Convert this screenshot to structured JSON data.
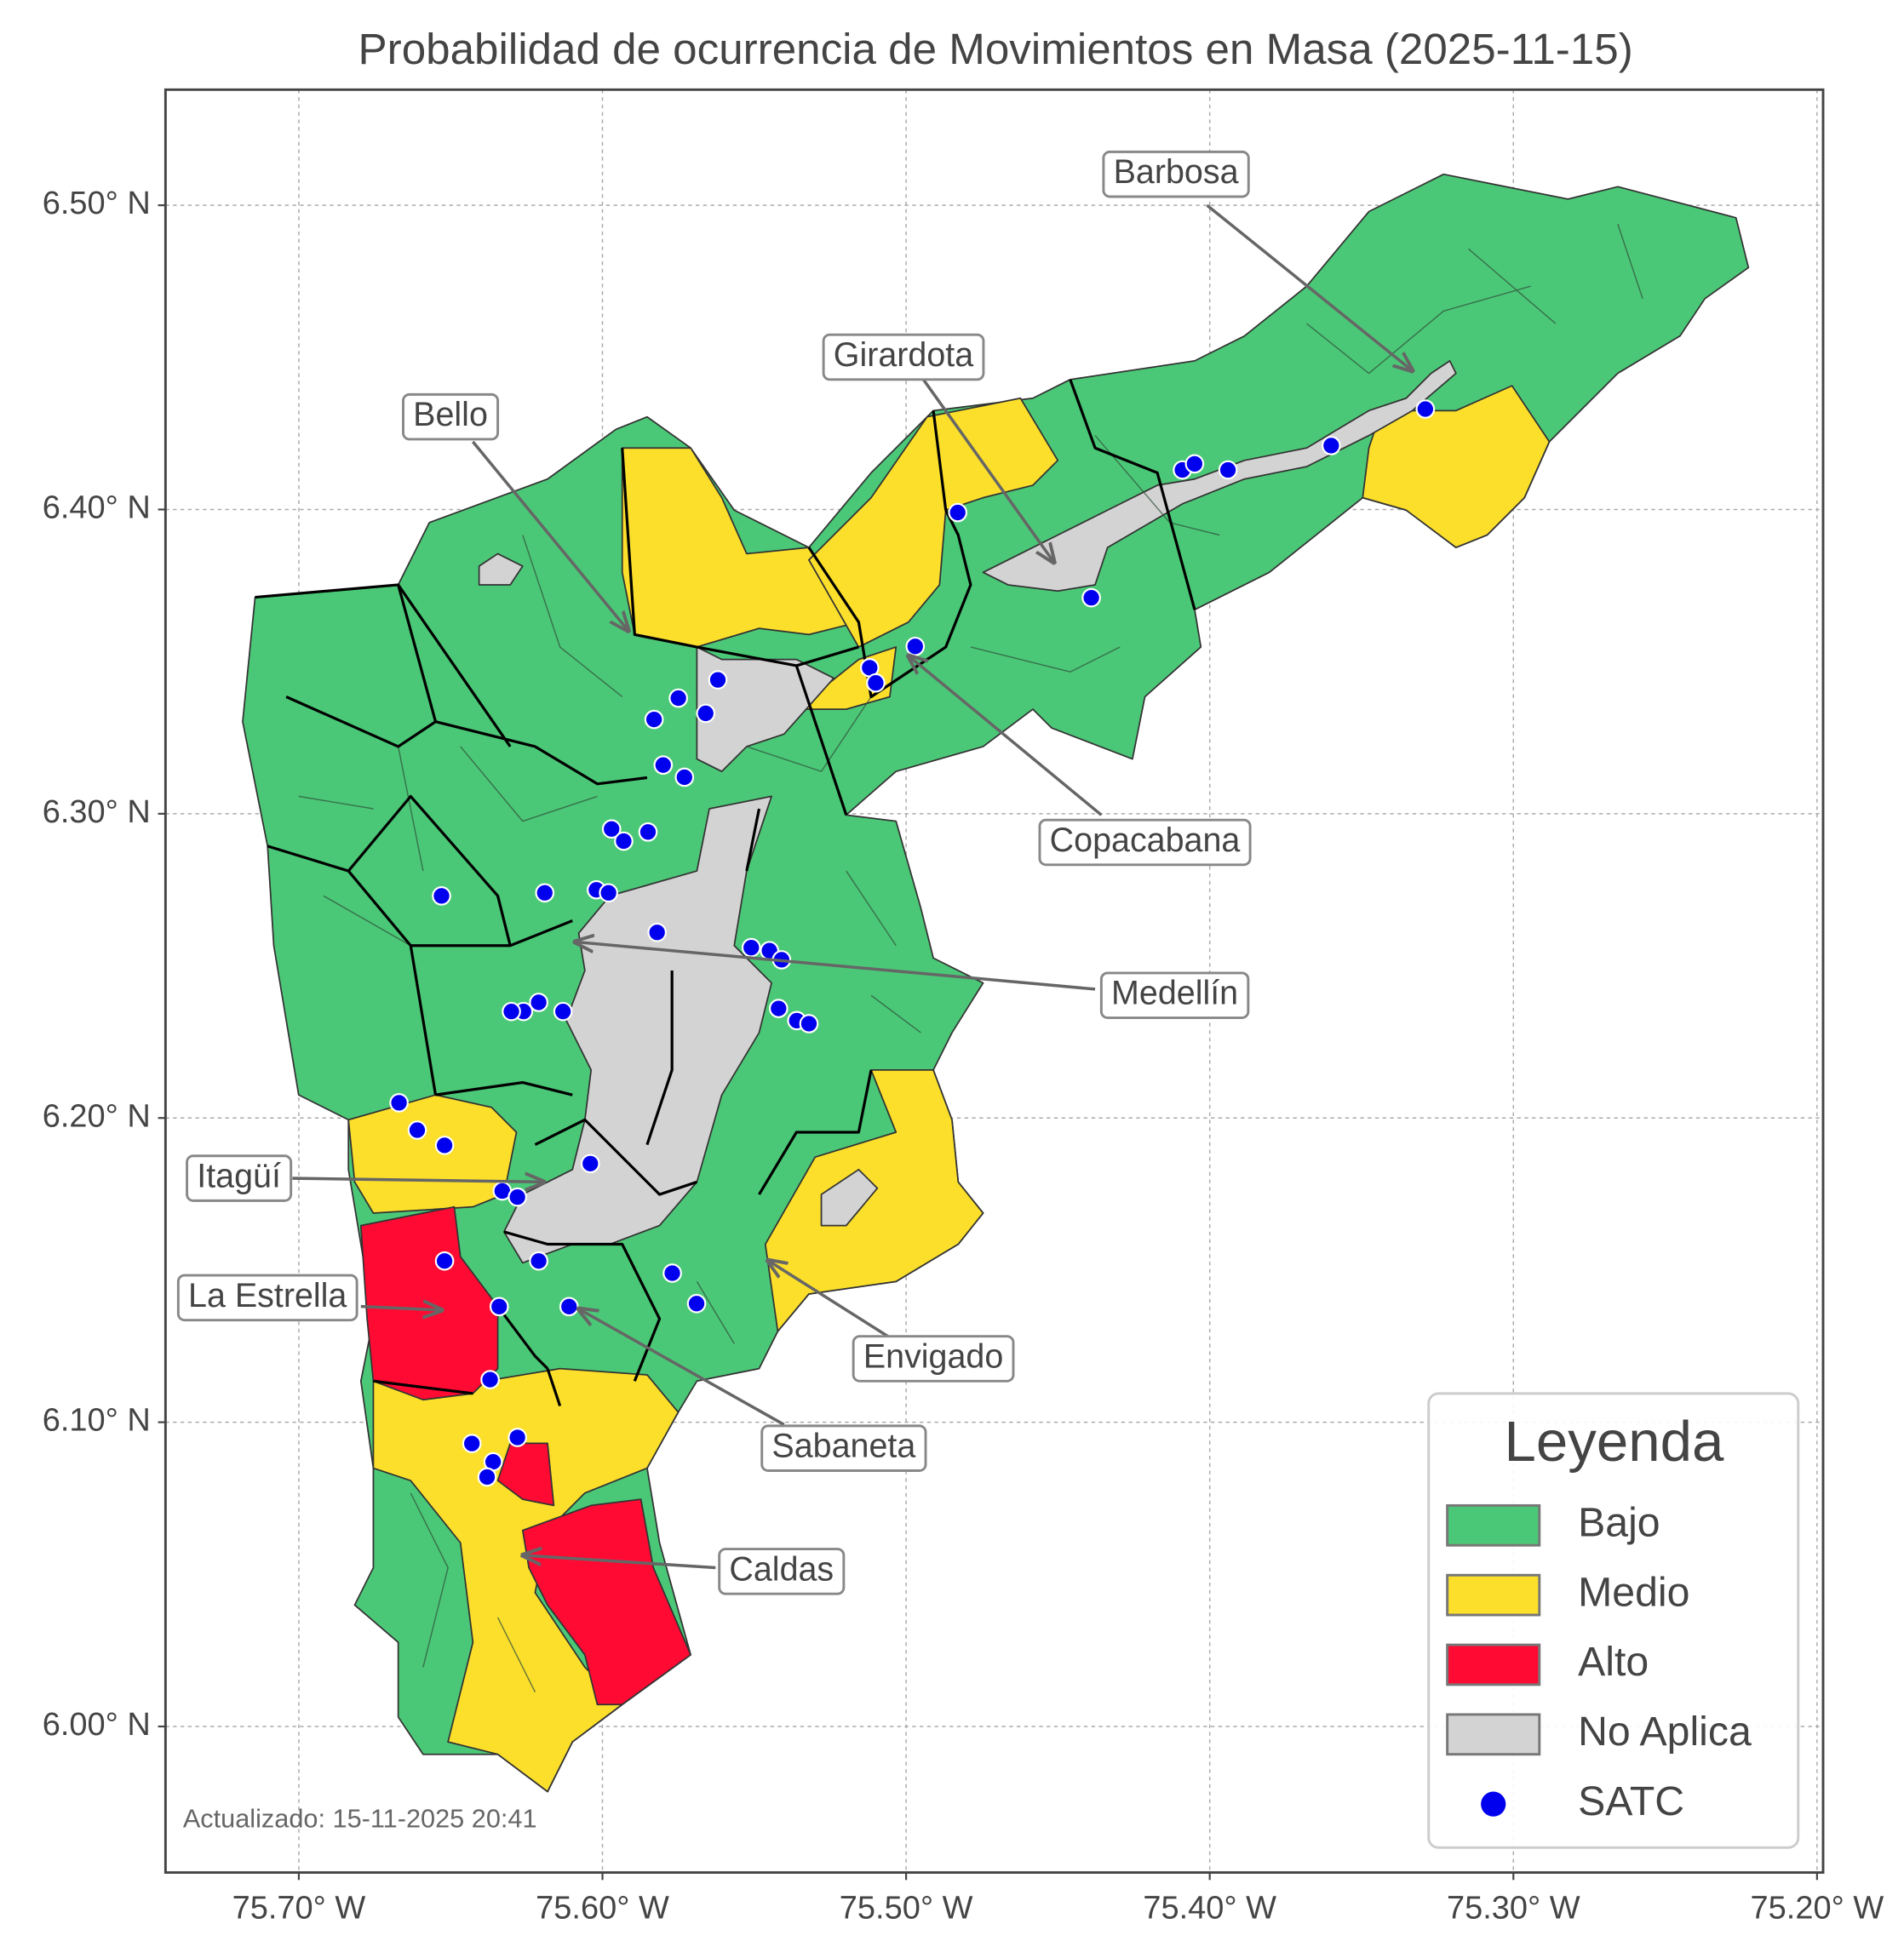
{
  "title": "Probabilidad de ocurrencia de Movimientos en Masa (2025-11-15)",
  "axes": {
    "xlim": [
      -75.7439,
      -75.198
    ],
    "ylim": [
      5.952,
      6.538
    ],
    "xticks": [
      {
        "value": -75.7,
        "label": "75.70° W"
      },
      {
        "value": -75.6,
        "label": "75.60° W"
      },
      {
        "value": -75.5,
        "label": "75.50° W"
      },
      {
        "value": -75.4,
        "label": "75.40° W"
      },
      {
        "value": -75.3,
        "label": "75.30° W"
      },
      {
        "value": -75.2,
        "label": "75.20° W"
      }
    ],
    "yticks": [
      {
        "value": 6.0,
        "label": "6.00° N"
      },
      {
        "value": 6.1,
        "label": "6.10° N"
      },
      {
        "value": 6.2,
        "label": "6.20° N"
      },
      {
        "value": 6.3,
        "label": "6.30° N"
      },
      {
        "value": 6.4,
        "label": "6.40° N"
      },
      {
        "value": 6.5,
        "label": "6.50° N"
      }
    ],
    "grid": true
  },
  "labels": [
    "Barbosa",
    "Girardota",
    "Bello",
    "Copacabana",
    "Medellín",
    "Itagüí",
    "La Estrella",
    "Envigado",
    "Sabaneta",
    "Caldas"
  ],
  "legend": {
    "title": "Leyenda",
    "items": [
      {
        "name": "Bajo",
        "color": "#4bc877"
      },
      {
        "name": "Medio",
        "color": "#fbdf2b"
      },
      {
        "name": "Alto",
        "color": "#ff0a33"
      },
      {
        "name": "No Aplica",
        "color": "#d3d3d3"
      },
      {
        "name": "SATC",
        "color": "#0000ee"
      }
    ]
  },
  "footnote": "Actualizado: 15-11-2025 20:41",
  "satc": {
    "lon": [
      -75.483,
      -75.409,
      -75.405,
      -75.394,
      -75.36,
      -75.329,
      -75.439,
      -75.497,
      -75.512,
      -75.51,
      -75.562,
      -75.575,
      -75.566,
      -75.583,
      -75.58,
      -75.573,
      -75.597,
      -75.593,
      -75.585,
      -75.653,
      -75.619,
      -75.602,
      -75.598,
      -75.582,
      -75.551,
      -75.545,
      -75.541,
      -75.542,
      -75.536,
      -75.532,
      -75.621,
      -75.626,
      -75.63,
      -75.613,
      -75.667,
      -75.661,
      -75.652,
      -75.604,
      -75.633,
      -75.628,
      -75.652,
      -75.621,
      -75.577,
      -75.569,
      -75.634,
      -75.611,
      -75.637,
      -75.643,
      -75.636,
      -75.638,
      -75.628
    ],
    "lat": [
      6.399,
      6.413,
      6.415,
      6.413,
      6.421,
      6.433,
      6.371,
      6.355,
      6.348,
      6.343,
      6.344,
      6.338,
      6.333,
      6.331,
      6.316,
      6.312,
      6.295,
      6.291,
      6.294,
      6.273,
      6.274,
      6.275,
      6.274,
      6.261,
      6.256,
      6.255,
      6.252,
      6.236,
      6.232,
      6.231,
      6.238,
      6.235,
      6.235,
      6.235,
      6.205,
      6.196,
      6.191,
      6.185,
      6.176,
      6.174,
      6.153,
      6.153,
      6.149,
      6.139,
      6.138,
      6.138,
      6.114,
      6.093,
      6.087,
      6.082,
      6.095
    ]
  }
}
